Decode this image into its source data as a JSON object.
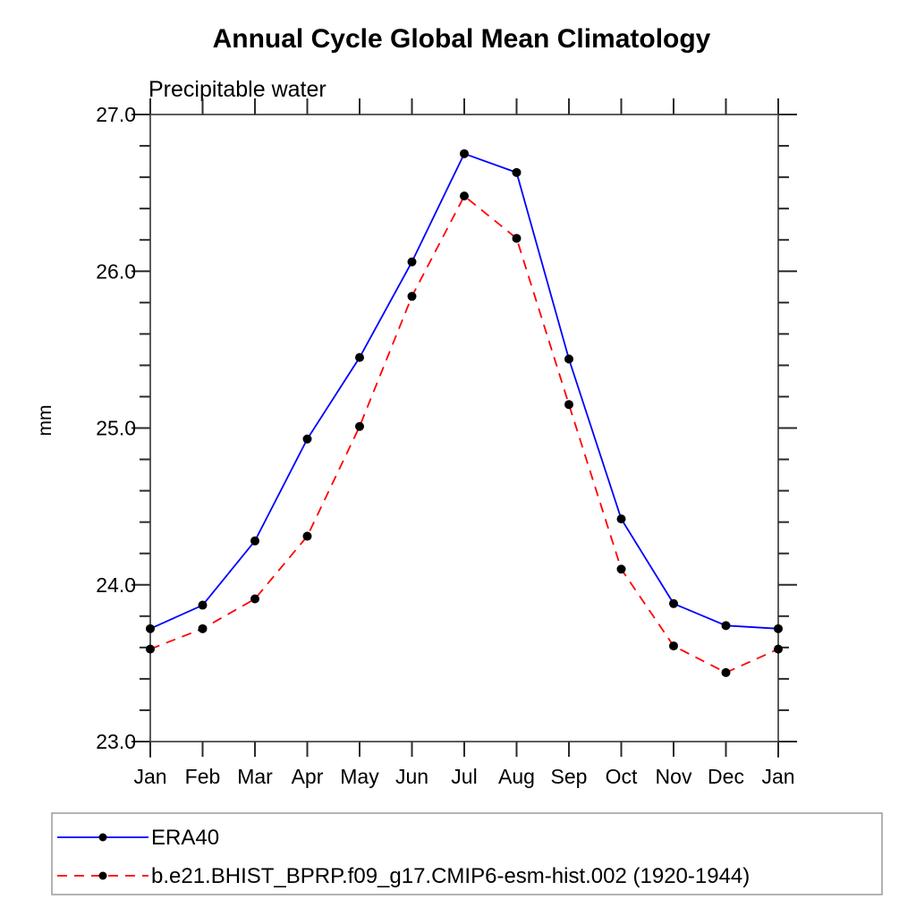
{
  "chart_data": {
    "type": "line",
    "title": "Annual Cycle Global Mean Climatology",
    "subtitle": "Precipitable water",
    "ylabel": "mm",
    "ylim": [
      23.0,
      27.0
    ],
    "ytick_major_labels": [
      "23.0",
      "24.0",
      "25.0",
      "26.0",
      "27.0"
    ],
    "ytick_major_values": [
      23.0,
      24.0,
      25.0,
      26.0,
      27.0
    ],
    "ytick_minor_step": 0.2,
    "x_categories": [
      "Jan",
      "Feb",
      "Mar",
      "Apr",
      "May",
      "Jun",
      "Jul",
      "Aug",
      "Sep",
      "Oct",
      "Nov",
      "Dec",
      "Jan"
    ],
    "grid": false,
    "legend_position": "bottom-left-box",
    "series": [
      {
        "name": "ERA40",
        "color": "#0000ff",
        "line_style": "solid",
        "marker": "filled-circle",
        "marker_color": "#000000",
        "values": [
          23.72,
          23.87,
          24.28,
          24.93,
          25.45,
          26.06,
          26.75,
          26.63,
          25.44,
          24.42,
          23.88,
          23.74,
          23.72
        ]
      },
      {
        "name": "b.e21.BHIST_BPRP.f09_g17.CMIP6-esm-hist.002 (1920-1944)",
        "color": "#ff0000",
        "line_style": "dashed",
        "marker": "filled-circle",
        "marker_color": "#000000",
        "values": [
          23.59,
          23.72,
          23.91,
          24.31,
          25.01,
          25.84,
          26.48,
          26.21,
          25.15,
          24.1,
          23.61,
          23.44,
          23.59
        ]
      }
    ],
    "colors": {
      "frame": "#5c5c5c",
      "tick": "#2b2b2b",
      "text": "#000000",
      "legend_border": "#9a9a9a",
      "background": "#ffffff"
    }
  }
}
